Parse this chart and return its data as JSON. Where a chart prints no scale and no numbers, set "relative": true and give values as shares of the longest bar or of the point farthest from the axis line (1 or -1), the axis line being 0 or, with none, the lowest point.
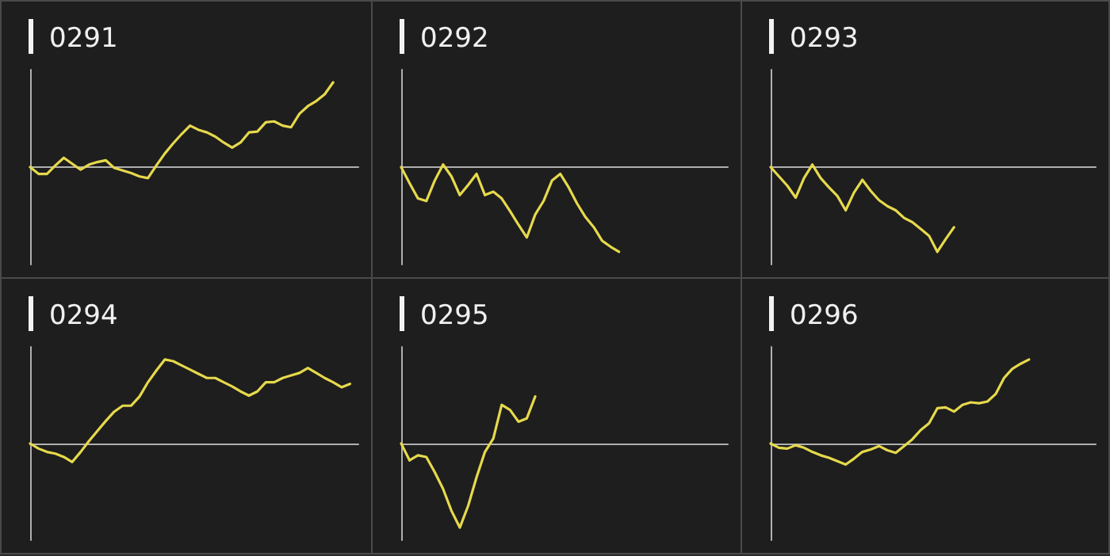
{
  "chart_data": [
    {
      "type": "line",
      "title": "0291",
      "relative": true,
      "grid": false,
      "marker": "none",
      "line_style": "solid",
      "categories": [
        null,
        null,
        null,
        null,
        null,
        null,
        null,
        null,
        null,
        null,
        null,
        null,
        null,
        null,
        null,
        null,
        null,
        null,
        null,
        null,
        null,
        null,
        null,
        null,
        null,
        null,
        null,
        null,
        null,
        null,
        null,
        null,
        null,
        null,
        null,
        null,
        null,
        null,
        null,
        null
      ],
      "series": [
        {
          "color": "#e6d94c",
          "values": [
            0,
            -0.08,
            -0.08,
            0.02,
            0.11,
            0.04,
            -0.03,
            0.03,
            0.06,
            0.08,
            -0.01,
            -0.04,
            -0.07,
            -0.11,
            -0.13,
            0.02,
            0.16,
            0.28,
            0.39,
            0.49,
            0.44,
            0.41,
            0.36,
            0.29,
            0.23,
            0.29,
            0.41,
            0.42,
            0.53,
            0.54,
            0.49,
            0.47,
            0.63,
            0.72,
            0.78,
            0.86,
            1.0,
            null,
            null,
            null
          ]
        }
      ]
    },
    {
      "type": "line",
      "title": "0292",
      "relative": true,
      "grid": false,
      "marker": "none",
      "line_style": "solid",
      "categories": [
        null,
        null,
        null,
        null,
        null,
        null,
        null,
        null,
        null,
        null,
        null,
        null,
        null,
        null,
        null,
        null,
        null,
        null,
        null,
        null,
        null,
        null,
        null,
        null,
        null,
        null,
        null,
        null,
        null,
        null,
        null,
        null,
        null,
        null,
        null,
        null,
        null,
        null,
        null,
        null
      ],
      "series": [
        {
          "color": "#e6d94c",
          "values": [
            0,
            -0.19,
            -0.37,
            -0.4,
            -0.16,
            0.03,
            -0.11,
            -0.33,
            -0.21,
            -0.08,
            -0.33,
            -0.29,
            -0.37,
            -0.52,
            -0.68,
            -0.83,
            -0.56,
            -0.4,
            -0.16,
            -0.08,
            -0.24,
            -0.43,
            -0.59,
            -0.71,
            -0.87,
            -0.94,
            -1.0,
            null,
            null,
            null,
            null,
            null,
            null,
            null,
            null,
            null,
            null,
            null,
            null,
            null
          ]
        }
      ]
    },
    {
      "type": "line",
      "title": "0293",
      "relative": true,
      "grid": false,
      "marker": "none",
      "line_style": "solid",
      "categories": [
        null,
        null,
        null,
        null,
        null,
        null,
        null,
        null,
        null,
        null,
        null,
        null,
        null,
        null,
        null,
        null,
        null,
        null,
        null,
        null,
        null,
        null,
        null,
        null,
        null,
        null,
        null,
        null,
        null,
        null,
        null,
        null,
        null,
        null,
        null,
        null,
        null,
        null,
        null,
        null
      ],
      "series": [
        {
          "color": "#e6d94c",
          "values": [
            0,
            -0.11,
            -0.22,
            -0.36,
            -0.13,
            0.03,
            -0.13,
            -0.24,
            -0.34,
            -0.51,
            -0.3,
            -0.15,
            -0.28,
            -0.39,
            -0.46,
            -0.51,
            -0.6,
            -0.65,
            -0.73,
            -0.81,
            -1.0,
            -0.85,
            -0.71,
            null,
            null,
            null,
            null,
            null,
            null,
            null,
            null,
            null,
            null,
            null,
            null,
            null,
            null,
            null,
            null,
            null
          ]
        }
      ]
    },
    {
      "type": "line",
      "title": "0294",
      "relative": true,
      "grid": false,
      "marker": "none",
      "line_style": "solid",
      "categories": [
        null,
        null,
        null,
        null,
        null,
        null,
        null,
        null,
        null,
        null,
        null,
        null,
        null,
        null,
        null,
        null,
        null,
        null,
        null,
        null,
        null,
        null,
        null,
        null,
        null,
        null,
        null,
        null,
        null,
        null,
        null,
        null,
        null,
        null,
        null,
        null,
        null,
        null,
        null,
        null
      ],
      "series": [
        {
          "color": "#e6d94c",
          "values": [
            0,
            -0.06,
            -0.1,
            -0.12,
            -0.16,
            -0.22,
            -0.1,
            0.03,
            0.15,
            0.27,
            0.38,
            0.45,
            0.45,
            0.56,
            0.73,
            0.87,
            1.0,
            0.98,
            0.93,
            0.88,
            0.83,
            0.78,
            0.78,
            0.73,
            0.68,
            0.62,
            0.57,
            0.62,
            0.73,
            0.73,
            0.78,
            0.81,
            0.84,
            0.9,
            0.84,
            0.78,
            0.73,
            0.67,
            0.71,
            null
          ]
        }
      ]
    },
    {
      "type": "line",
      "title": "0295",
      "relative": true,
      "grid": false,
      "marker": "none",
      "line_style": "solid",
      "categories": [
        null,
        null,
        null,
        null,
        null,
        null,
        null,
        null,
        null,
        null,
        null,
        null,
        null,
        null,
        null,
        null,
        null,
        null,
        null,
        null,
        null,
        null,
        null,
        null,
        null,
        null,
        null,
        null,
        null,
        null,
        null,
        null,
        null,
        null,
        null,
        null,
        null,
        null,
        null,
        null
      ],
      "series": [
        {
          "color": "#e6d94c",
          "values": [
            0,
            -0.2,
            -0.14,
            -0.16,
            -0.34,
            -0.54,
            -0.8,
            -1.0,
            -0.74,
            -0.4,
            -0.1,
            0.06,
            0.46,
            0.4,
            0.26,
            0.3,
            0.56,
            null,
            null,
            null,
            null,
            null,
            null,
            null,
            null,
            null,
            null,
            null,
            null,
            null,
            null,
            null,
            null,
            null,
            null,
            null,
            null,
            null,
            null,
            null
          ]
        }
      ]
    },
    {
      "type": "line",
      "title": "0296",
      "relative": true,
      "grid": false,
      "marker": "none",
      "line_style": "solid",
      "categories": [
        null,
        null,
        null,
        null,
        null,
        null,
        null,
        null,
        null,
        null,
        null,
        null,
        null,
        null,
        null,
        null,
        null,
        null,
        null,
        null,
        null,
        null,
        null,
        null,
        null,
        null,
        null,
        null,
        null,
        null,
        null,
        null,
        null,
        null,
        null,
        null,
        null,
        null,
        null,
        null
      ],
      "series": [
        {
          "color": "#e6d94c",
          "values": [
            0,
            -0.05,
            -0.06,
            -0.02,
            -0.05,
            -0.1,
            -0.14,
            -0.17,
            -0.21,
            -0.25,
            -0.18,
            -0.1,
            -0.07,
            -0.03,
            -0.08,
            -0.11,
            -0.03,
            0.05,
            0.16,
            0.24,
            0.42,
            0.43,
            0.38,
            0.46,
            0.49,
            0.48,
            0.5,
            0.59,
            0.78,
            0.89,
            0.95,
            1.0,
            null,
            null,
            null,
            null,
            null,
            null,
            null,
            null
          ]
        }
      ]
    }
  ]
}
